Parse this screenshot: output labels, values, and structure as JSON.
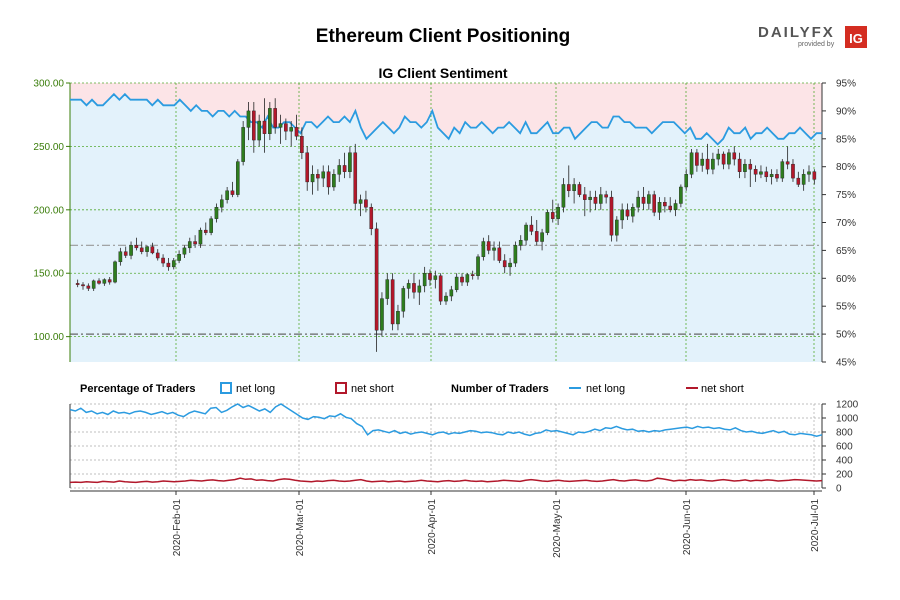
{
  "title": "Ethereum Client Positioning",
  "subtitle": "IG Client Sentiment",
  "brand": {
    "dailyfx": "DAILYFX",
    "provided_by": "provided by",
    "ig": "IG"
  },
  "legend": {
    "percentage_title": "Percentage of Traders",
    "number_title": "Number of Traders",
    "net_long": "net long",
    "net_short": "net short"
  },
  "colors": {
    "up_candle": "#2e7d1e",
    "down_candle": "#b2182b",
    "long_line": "#2b9be0",
    "short_line": "#b2182b",
    "long_fill": "#e3f2fb",
    "short_fill": "#fce4e7",
    "price_axis": "#3a7d0a",
    "grid": "#55aa33"
  },
  "chart_data": [
    {
      "type": "candlestick",
      "name": "price",
      "ylim": [
        80,
        300
      ],
      "y_ticks": [
        "100.00",
        "150.00",
        "200.00",
        "250.00",
        "300.00"
      ],
      "ohlc": [
        [
          142,
          145,
          139,
          141
        ],
        [
          141,
          143,
          137,
          140
        ],
        [
          140,
          142,
          136,
          138
        ],
        [
          138,
          145,
          136,
          144
        ],
        [
          144,
          146,
          141,
          142
        ],
        [
          142,
          146,
          140,
          145
        ],
        [
          145,
          147,
          141,
          143
        ],
        [
          143,
          160,
          142,
          159
        ],
        [
          159,
          170,
          156,
          167
        ],
        [
          167,
          171,
          162,
          164
        ],
        [
          164,
          175,
          161,
          172
        ],
        [
          172,
          178,
          168,
          170
        ],
        [
          170,
          175,
          165,
          167
        ],
        [
          167,
          172,
          163,
          171
        ],
        [
          171,
          174,
          165,
          166
        ],
        [
          166,
          169,
          160,
          162
        ],
        [
          162,
          165,
          155,
          158
        ],
        [
          158,
          162,
          152,
          155
        ],
        [
          155,
          162,
          153,
          160
        ],
        [
          160,
          168,
          158,
          165
        ],
        [
          165,
          172,
          162,
          170
        ],
        [
          170,
          178,
          166,
          175
        ],
        [
          175,
          180,
          170,
          173
        ],
        [
          173,
          186,
          170,
          184
        ],
        [
          184,
          190,
          180,
          182
        ],
        [
          182,
          195,
          180,
          193
        ],
        [
          193,
          205,
          190,
          202
        ],
        [
          202,
          212,
          198,
          208
        ],
        [
          208,
          218,
          205,
          215
        ],
        [
          215,
          222,
          210,
          212
        ],
        [
          212,
          240,
          210,
          238
        ],
        [
          238,
          270,
          235,
          265
        ],
        [
          265,
          285,
          255,
          278
        ],
        [
          278,
          285,
          245,
          255
        ],
        [
          255,
          275,
          250,
          270
        ],
        [
          270,
          288,
          245,
          260
        ],
        [
          260,
          285,
          255,
          280
        ],
        [
          280,
          288,
          260,
          265
        ],
        [
          265,
          275,
          252,
          268
        ],
        [
          268,
          272,
          255,
          262
        ],
        [
          262,
          270,
          250,
          265
        ],
        [
          265,
          275,
          255,
          258
        ],
        [
          258,
          265,
          240,
          245
        ],
        [
          245,
          250,
          215,
          222
        ],
        [
          222,
          235,
          212,
          228
        ],
        [
          228,
          232,
          215,
          225
        ],
        [
          225,
          235,
          218,
          230
        ],
        [
          230,
          235,
          212,
          218
        ],
        [
          218,
          232,
          215,
          228
        ],
        [
          228,
          240,
          222,
          235
        ],
        [
          235,
          245,
          225,
          230
        ],
        [
          230,
          250,
          225,
          245
        ],
        [
          245,
          252,
          200,
          205
        ],
        [
          205,
          212,
          195,
          208
        ],
        [
          208,
          215,
          198,
          202
        ],
        [
          202,
          205,
          180,
          185
        ],
        [
          185,
          190,
          88,
          105
        ],
        [
          105,
          135,
          100,
          130
        ],
        [
          130,
          150,
          125,
          145
        ],
        [
          145,
          150,
          105,
          110
        ],
        [
          110,
          125,
          105,
          120
        ],
        [
          120,
          140,
          115,
          138
        ],
        [
          138,
          145,
          130,
          142
        ],
        [
          142,
          150,
          130,
          135
        ],
        [
          135,
          145,
          125,
          140
        ],
        [
          140,
          155,
          135,
          150
        ],
        [
          150,
          153,
          140,
          145
        ],
        [
          145,
          152,
          138,
          148
        ],
        [
          148,
          150,
          125,
          128
        ],
        [
          128,
          135,
          125,
          132
        ],
        [
          132,
          140,
          128,
          137
        ],
        [
          137,
          150,
          135,
          147
        ],
        [
          147,
          150,
          140,
          143
        ],
        [
          143,
          150,
          140,
          149
        ],
        [
          149,
          152,
          145,
          148
        ],
        [
          148,
          165,
          145,
          163
        ],
        [
          163,
          178,
          160,
          175
        ],
        [
          175,
          180,
          165,
          168
        ],
        [
          168,
          175,
          160,
          170
        ],
        [
          170,
          175,
          158,
          160
        ],
        [
          160,
          165,
          150,
          155
        ],
        [
          155,
          162,
          148,
          158
        ],
        [
          158,
          175,
          155,
          172
        ],
        [
          172,
          180,
          168,
          176
        ],
        [
          176,
          190,
          172,
          188
        ],
        [
          188,
          195,
          180,
          183
        ],
        [
          183,
          192,
          172,
          175
        ],
        [
          175,
          185,
          168,
          182
        ],
        [
          182,
          200,
          180,
          198
        ],
        [
          198,
          208,
          190,
          193
        ],
        [
          193,
          205,
          188,
          202
        ],
        [
          202,
          225,
          198,
          220
        ],
        [
          220,
          235,
          210,
          215
        ],
        [
          215,
          225,
          205,
          220
        ],
        [
          220,
          222,
          210,
          212
        ],
        [
          212,
          218,
          195,
          208
        ],
        [
          208,
          215,
          198,
          210
        ],
        [
          210,
          215,
          200,
          205
        ],
        [
          205,
          218,
          200,
          212
        ],
        [
          212,
          215,
          205,
          210
        ],
        [
          210,
          215,
          175,
          180
        ],
        [
          180,
          195,
          175,
          192
        ],
        [
          192,
          205,
          185,
          200
        ],
        [
          200,
          205,
          192,
          195
        ],
        [
          195,
          205,
          190,
          202
        ],
        [
          202,
          215,
          198,
          210
        ],
        [
          210,
          218,
          200,
          205
        ],
        [
          205,
          215,
          200,
          212
        ],
        [
          212,
          215,
          195,
          198
        ],
        [
          198,
          210,
          192,
          206
        ],
        [
          206,
          210,
          198,
          203
        ],
        [
          203,
          210,
          198,
          200
        ],
        [
          200,
          208,
          195,
          205
        ],
        [
          205,
          220,
          202,
          218
        ],
        [
          218,
          232,
          215,
          228
        ],
        [
          228,
          248,
          225,
          245
        ],
        [
          245,
          248,
          230,
          235
        ],
        [
          235,
          245,
          230,
          240
        ],
        [
          240,
          252,
          228,
          232
        ],
        [
          232,
          245,
          228,
          240
        ],
        [
          240,
          248,
          235,
          244
        ],
        [
          244,
          246,
          232,
          236
        ],
        [
          236,
          248,
          232,
          245
        ],
        [
          245,
          250,
          235,
          240
        ],
        [
          240,
          245,
          225,
          230
        ],
        [
          230,
          240,
          225,
          236
        ],
        [
          236,
          240,
          218,
          232
        ],
        [
          232,
          235,
          222,
          228
        ],
        [
          228,
          235,
          225,
          230
        ],
        [
          230,
          234,
          222,
          226
        ],
        [
          226,
          232,
          220,
          228
        ],
        [
          228,
          232,
          222,
          225
        ],
        [
          225,
          240,
          222,
          238
        ],
        [
          238,
          250,
          232,
          236
        ],
        [
          236,
          240,
          222,
          225
        ],
        [
          225,
          230,
          218,
          220
        ],
        [
          220,
          232,
          215,
          228
        ],
        [
          228,
          235,
          222,
          230
        ],
        [
          230,
          232,
          220,
          224
        ]
      ]
    },
    {
      "type": "line",
      "name": "net long",
      "axis": "right",
      "ylim": [
        45,
        95
      ],
      "y_ticks": [
        "45%",
        "50%",
        "55%",
        "60%",
        "65%",
        "70%",
        "75%",
        "80%",
        "85%",
        "90%",
        "95%"
      ],
      "values": [
        92,
        92,
        92,
        91,
        92,
        91,
        91,
        92,
        93,
        92,
        93,
        92,
        92,
        92,
        92,
        91,
        92,
        91,
        91,
        91,
        92,
        91,
        90,
        91,
        90,
        90,
        89,
        90,
        90,
        89,
        90,
        89,
        89,
        88,
        88,
        87,
        89,
        87,
        87,
        88,
        88,
        87,
        86,
        88,
        88,
        87,
        88,
        89,
        88,
        88,
        89,
        88,
        90,
        87,
        85,
        86,
        87,
        88,
        87,
        86,
        87,
        89,
        88,
        88,
        87,
        88,
        90,
        87,
        86,
        85,
        87,
        86,
        88,
        87,
        87,
        88,
        87,
        86,
        87,
        87,
        88,
        87,
        86,
        88,
        86,
        86,
        87,
        88,
        86,
        86,
        87,
        87,
        85,
        86,
        87,
        88,
        88,
        87,
        87,
        89,
        89,
        88,
        88,
        87,
        87,
        87,
        86,
        87,
        88,
        88,
        88,
        87,
        86,
        87,
        85,
        85,
        86,
        85,
        84,
        85,
        87,
        86,
        86,
        87,
        85,
        86,
        86,
        87,
        86,
        85,
        85,
        86,
        86,
        87,
        86,
        85,
        86,
        86
      ]
    },
    {
      "type": "line",
      "name": "number of traders",
      "ylim": [
        0,
        1200
      ],
      "y_ticks": [
        "0",
        "200",
        "400",
        "600",
        "800",
        "1000",
        "1200"
      ],
      "series": [
        {
          "name": "net long",
          "values": [
            1120,
            1100,
            1140,
            1080,
            1100,
            1060,
            1080,
            1050,
            1100,
            1070,
            1080,
            1060,
            1090,
            1100,
            1080,
            1050,
            1070,
            1090,
            1060,
            1080,
            1040,
            1020,
            1070,
            1100,
            1080,
            1060,
            1140,
            1150,
            1080,
            1110,
            1160,
            1200,
            1150,
            1180,
            1140,
            1100,
            1130,
            1080,
            1160,
            1200,
            1150,
            1100,
            1050,
            1000,
            980,
            1020,
            1010,
            990,
            1030,
            1020,
            1060,
            1010,
            990,
            920,
            880,
            760,
            820,
            830,
            810,
            790,
            820,
            780,
            800,
            770,
            790,
            800,
            780,
            760,
            790,
            800,
            770,
            790,
            780,
            800,
            820,
            810,
            790,
            800,
            790,
            770,
            760,
            800,
            780,
            800,
            770,
            750,
            780,
            790,
            830,
            810,
            820,
            800,
            780,
            760,
            800,
            790,
            810,
            840,
            820,
            860,
            850,
            880,
            850,
            830,
            840,
            810,
            820,
            800,
            820,
            810,
            830,
            840,
            850,
            860,
            870,
            850,
            880,
            860,
            870,
            850,
            860,
            840,
            830,
            860,
            820,
            800,
            810,
            790,
            780,
            800,
            820,
            790,
            810,
            770,
            760,
            780,
            770,
            760,
            740,
            760
          ]
        },
        {
          "name": "net short",
          "values": [
            80,
            85,
            80,
            90,
            85,
            80,
            95,
            90,
            85,
            100,
            90,
            85,
            80,
            90,
            95,
            85,
            90,
            100,
            95,
            90,
            95,
            100,
            110,
            105,
            100,
            110,
            115,
            105,
            100,
            110,
            120,
            140,
            125,
            130,
            110,
            115,
            105,
            100,
            120,
            130,
            125,
            110,
            100,
            95,
            90,
            100,
            95,
            105,
            110,
            100,
            95,
            100,
            110,
            120,
            100,
            90,
            95,
            100,
            90,
            95,
            100,
            90,
            95,
            100,
            110,
            100,
            95,
            90,
            100,
            105,
            95,
            100,
            110,
            100,
            95,
            100,
            90,
            95,
            100,
            110,
            105,
            100,
            95,
            110,
            120,
            110,
            100,
            95,
            105,
            110,
            100,
            95,
            100,
            105,
            110,
            100,
            95,
            100,
            110,
            120,
            105,
            100,
            110,
            115,
            105,
            100,
            110,
            140,
            130,
            115,
            100,
            110,
            105,
            120,
            110,
            115,
            105,
            100,
            110,
            120,
            110,
            100,
            105,
            115,
            100,
            110,
            105,
            115,
            110,
            100,
            105,
            110,
            120,
            115,
            110,
            105,
            100,
            105
          ]
        }
      ]
    }
  ],
  "x_ticks": [
    "2020-Feb-01",
    "2020-Mar-01",
    "2020-Apr-01",
    "2020-May-01",
    "2020-Jun-01",
    "2020-Jul-01"
  ]
}
